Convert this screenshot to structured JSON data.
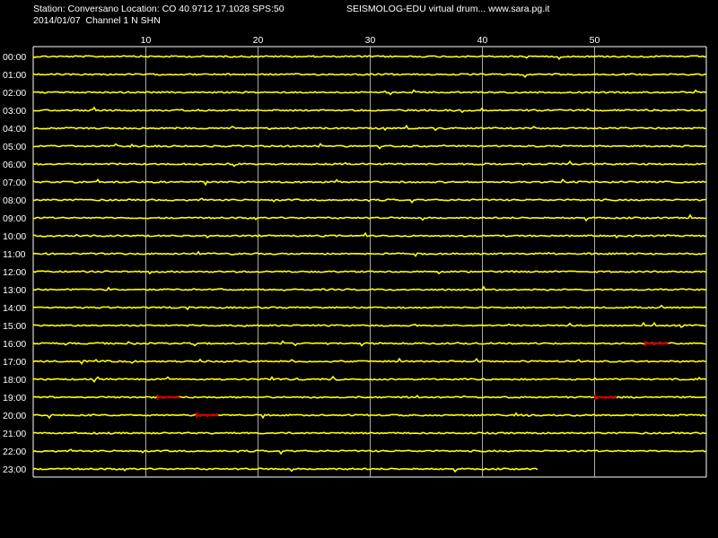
{
  "header": {
    "station_line": "Station: Conversano Location: CO 40.9712 17.1028 SPS:50",
    "date_line": "2014/01/07  Channel 1 N SHN",
    "app_title": "SEISMOLOG-EDU virtual drum... www.sara.pg.it"
  },
  "drum": {
    "minute_ticks": [
      "10",
      "20",
      "30",
      "40",
      "50"
    ],
    "hours": [
      "00:00",
      "01:00",
      "02:00",
      "03:00",
      "04:00",
      "05:00",
      "06:00",
      "07:00",
      "08:00",
      "09:00",
      "10:00",
      "11:00",
      "12:00",
      "13:00",
      "14:00",
      "15:00",
      "16:00",
      "17:00",
      "18:00",
      "19:00",
      "20:00",
      "21:00",
      "22:00",
      "23:00"
    ],
    "trace_color": "#ffff00",
    "event_color": "#cc0000",
    "grid_color": "#ffffff",
    "background": "#000000",
    "last_trace_end_minute": 45,
    "events": [
      {
        "hour": "16:00",
        "minute_start": 54.5,
        "minute_end": 56.6
      },
      {
        "hour": "19:00",
        "minute_start": 11.0,
        "minute_end": 13.0
      },
      {
        "hour": "19:00",
        "minute_start": 50.0,
        "minute_end": 52.0
      },
      {
        "hour": "20:00",
        "minute_start": 14.5,
        "minute_end": 16.5
      }
    ]
  }
}
